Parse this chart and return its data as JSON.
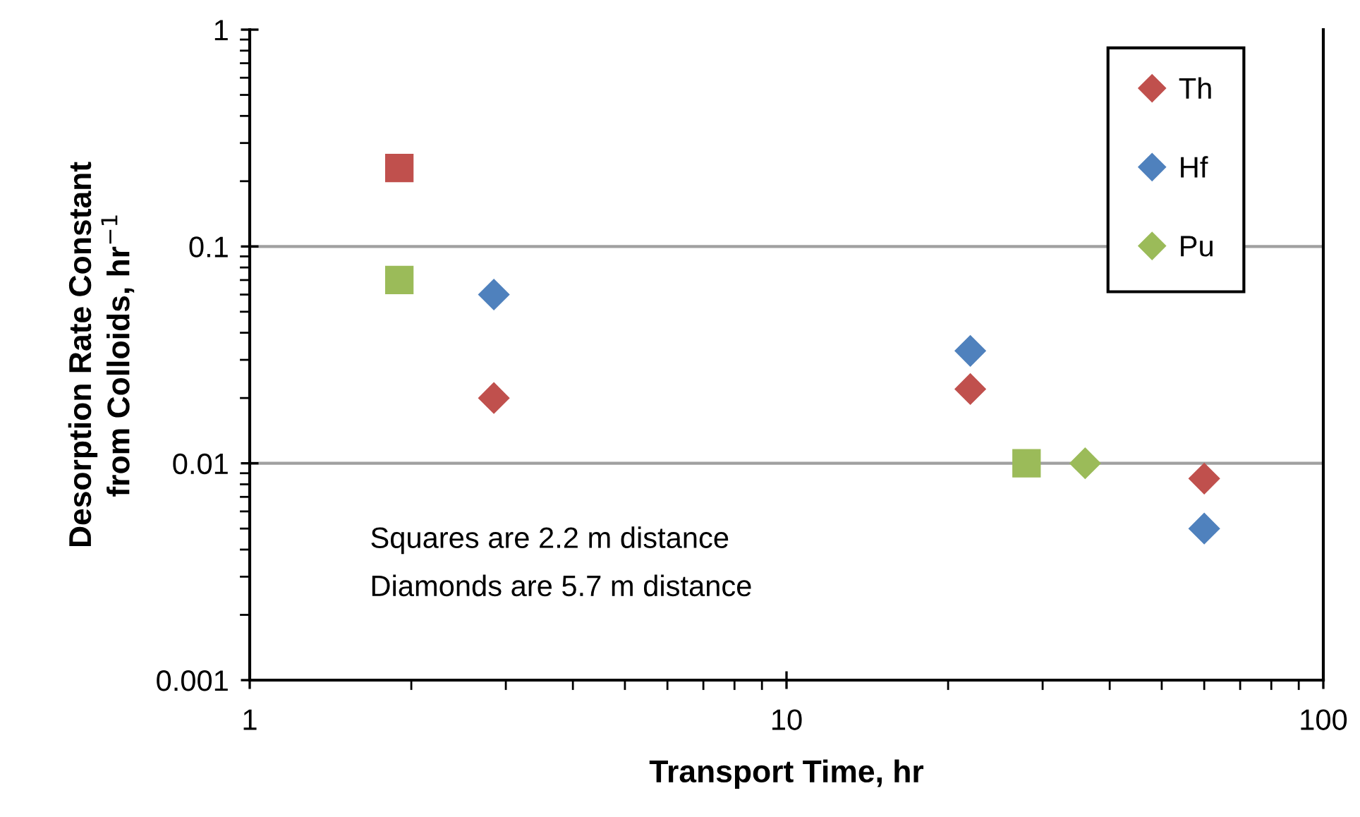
{
  "chart_data": {
    "type": "scatter",
    "xlabel": "Transport Time, hr",
    "ylabel": "Desorption Rate Constant\nfrom Colloids, hr$^{−1}$",
    "log": "xy",
    "xlim": [
      1,
      100
    ],
    "xticks": [
      1,
      10,
      100
    ],
    "ylim": [
      0.001,
      1
    ],
    "yticks": [
      0.001,
      0.01,
      0.1,
      1
    ],
    "grid": "y",
    "legend": "top right",
    "annotations": [
      "Squares are 2.2 m distance",
      "Diamonds are 5.7 m distance"
    ],
    "series": [
      {
        "name": "Th",
        "color": "#c0504d",
        "marker": "diamond",
        "x": [
          2.85,
          22,
          60
        ],
        "values": [
          0.02,
          0.022,
          0.0085
        ]
      },
      {
        "name": "Hf",
        "color": "#4f81bd",
        "marker": "diamond",
        "x": [
          2.85,
          22,
          60
        ],
        "values": [
          0.06,
          0.033,
          0.005
        ]
      },
      {
        "name": "Pu",
        "color": "#9bbb59",
        "marker": "diamond",
        "x": [
          36
        ],
        "values": [
          0.01
        ]
      },
      {
        "color": "#c0504d",
        "marker": "square",
        "x": [
          1.9
        ],
        "values": [
          0.23
        ]
      },
      {
        "color": "#9bbb59",
        "marker": "square",
        "x": [
          1.9,
          28
        ],
        "values": [
          0.07,
          0.01
        ]
      }
    ]
  }
}
